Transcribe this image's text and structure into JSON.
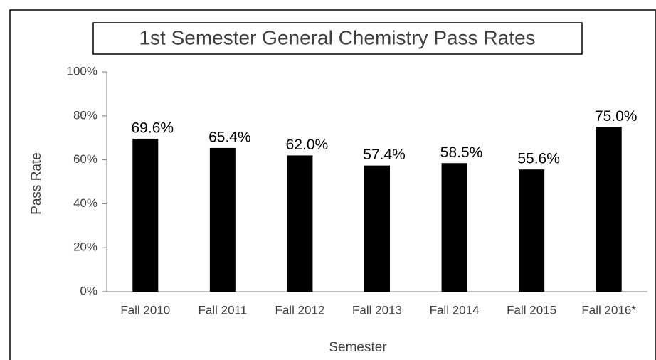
{
  "chart_data": {
    "type": "bar",
    "title": "1st Semester General Chemistry Pass Rates",
    "x_label": "Semester",
    "y_label": "Pass Rate",
    "categories": [
      "Fall 2010",
      "Fall 2011",
      "Fall 2012",
      "Fall 2013",
      "Fall 2014",
      "Fall 2015",
      "Fall 2016*"
    ],
    "values": [
      69.6,
      65.4,
      62.0,
      57.4,
      58.5,
      55.6,
      75.0
    ],
    "value_labels": [
      "69.6%",
      "65.4%",
      "62.0%",
      "57.4%",
      "58.5%",
      "55.6%",
      "75.0%"
    ],
    "color": "#000000",
    "ylim": [
      0,
      100
    ],
    "yticks": [
      {
        "value": 0,
        "label": "0%"
      },
      {
        "value": 20,
        "label": "20%"
      },
      {
        "value": 40,
        "label": "40%"
      },
      {
        "value": 60,
        "label": "60%"
      },
      {
        "value": 80,
        "label": "80%"
      },
      {
        "value": 100,
        "label": "100%"
      }
    ],
    "grid": false
  }
}
